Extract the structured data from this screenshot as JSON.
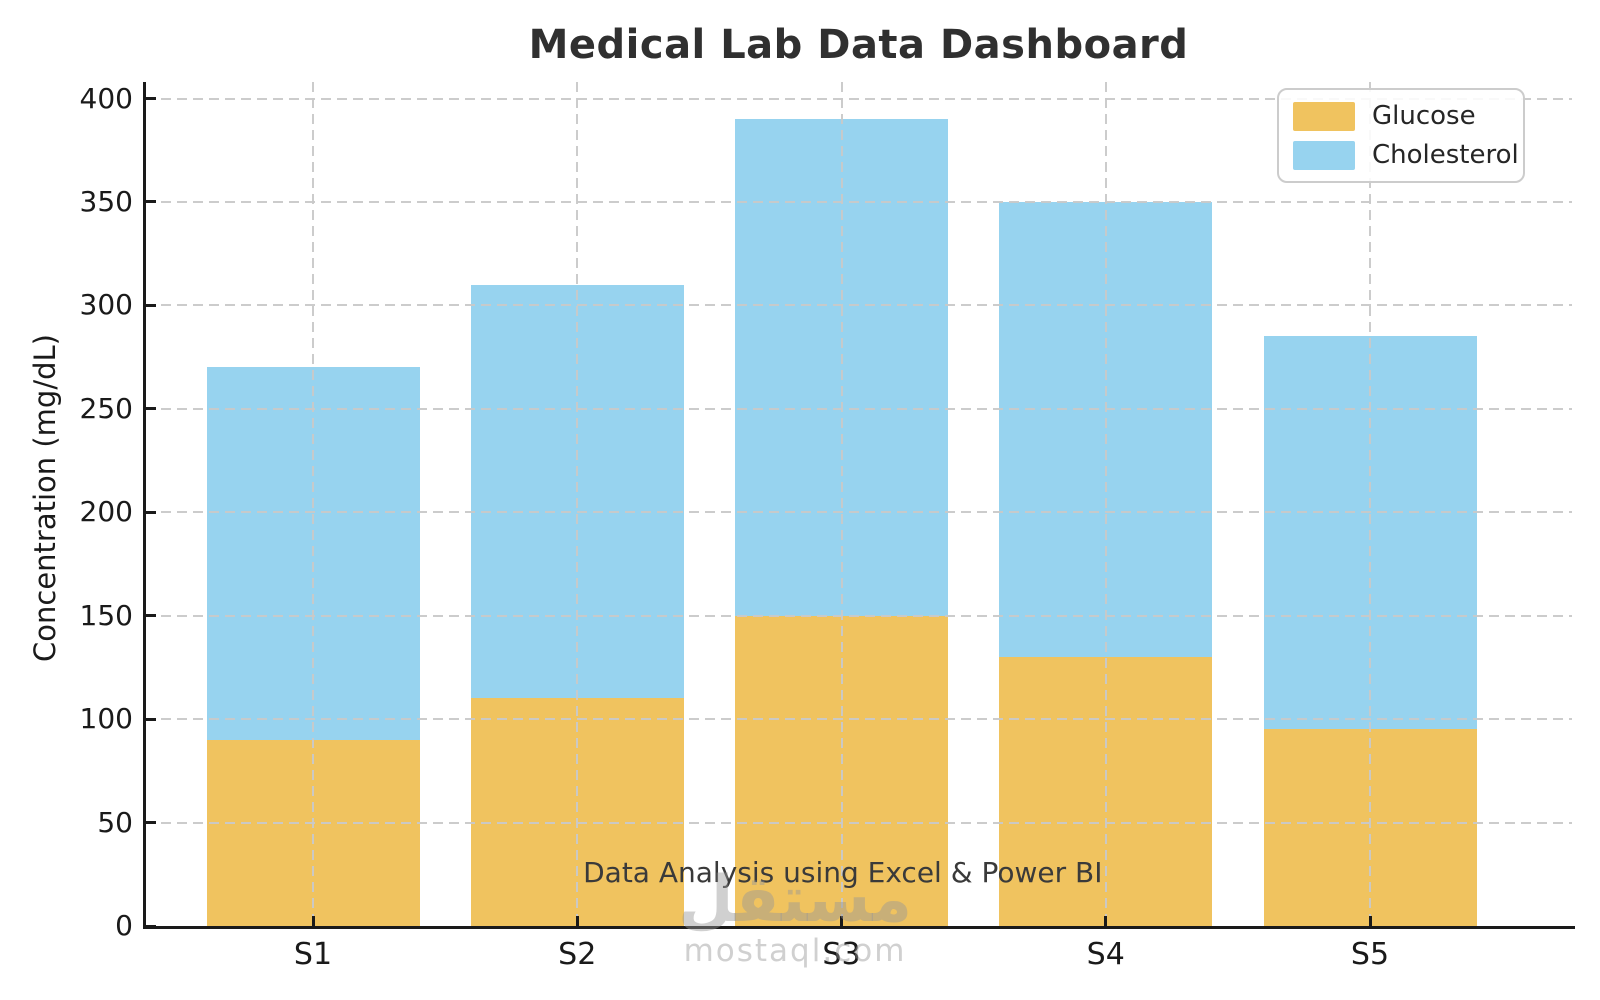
{
  "chart_data": {
    "type": "bar",
    "stacked": true,
    "title": "Medical Lab Data Dashboard",
    "categories": [
      "S1",
      "S2",
      "S3",
      "S4",
      "S5"
    ],
    "series": [
      {
        "name": "Glucose",
        "color": "#F0C35F",
        "values": [
          90,
          110,
          150,
          130,
          95
        ]
      },
      {
        "name": "Cholesterol",
        "color": "#97D3EF",
        "values": [
          180,
          200,
          240,
          220,
          190
        ]
      }
    ],
    "ylabel": "Concentration (mg/dL)",
    "xlabel": "",
    "ylim": [
      0,
      400
    ],
    "yticks": [
      0,
      50,
      100,
      150,
      200,
      250,
      300,
      350,
      400
    ],
    "grid": {
      "style": "dashed",
      "horizontal": true,
      "vertical": true,
      "color": "#C9C9C9"
    },
    "legend": {
      "position": "upper-right"
    },
    "annotation": "Data Analysis using Excel & Power BI"
  },
  "watermark": {
    "line1": "مستقل",
    "line2": "mostaql.com"
  }
}
